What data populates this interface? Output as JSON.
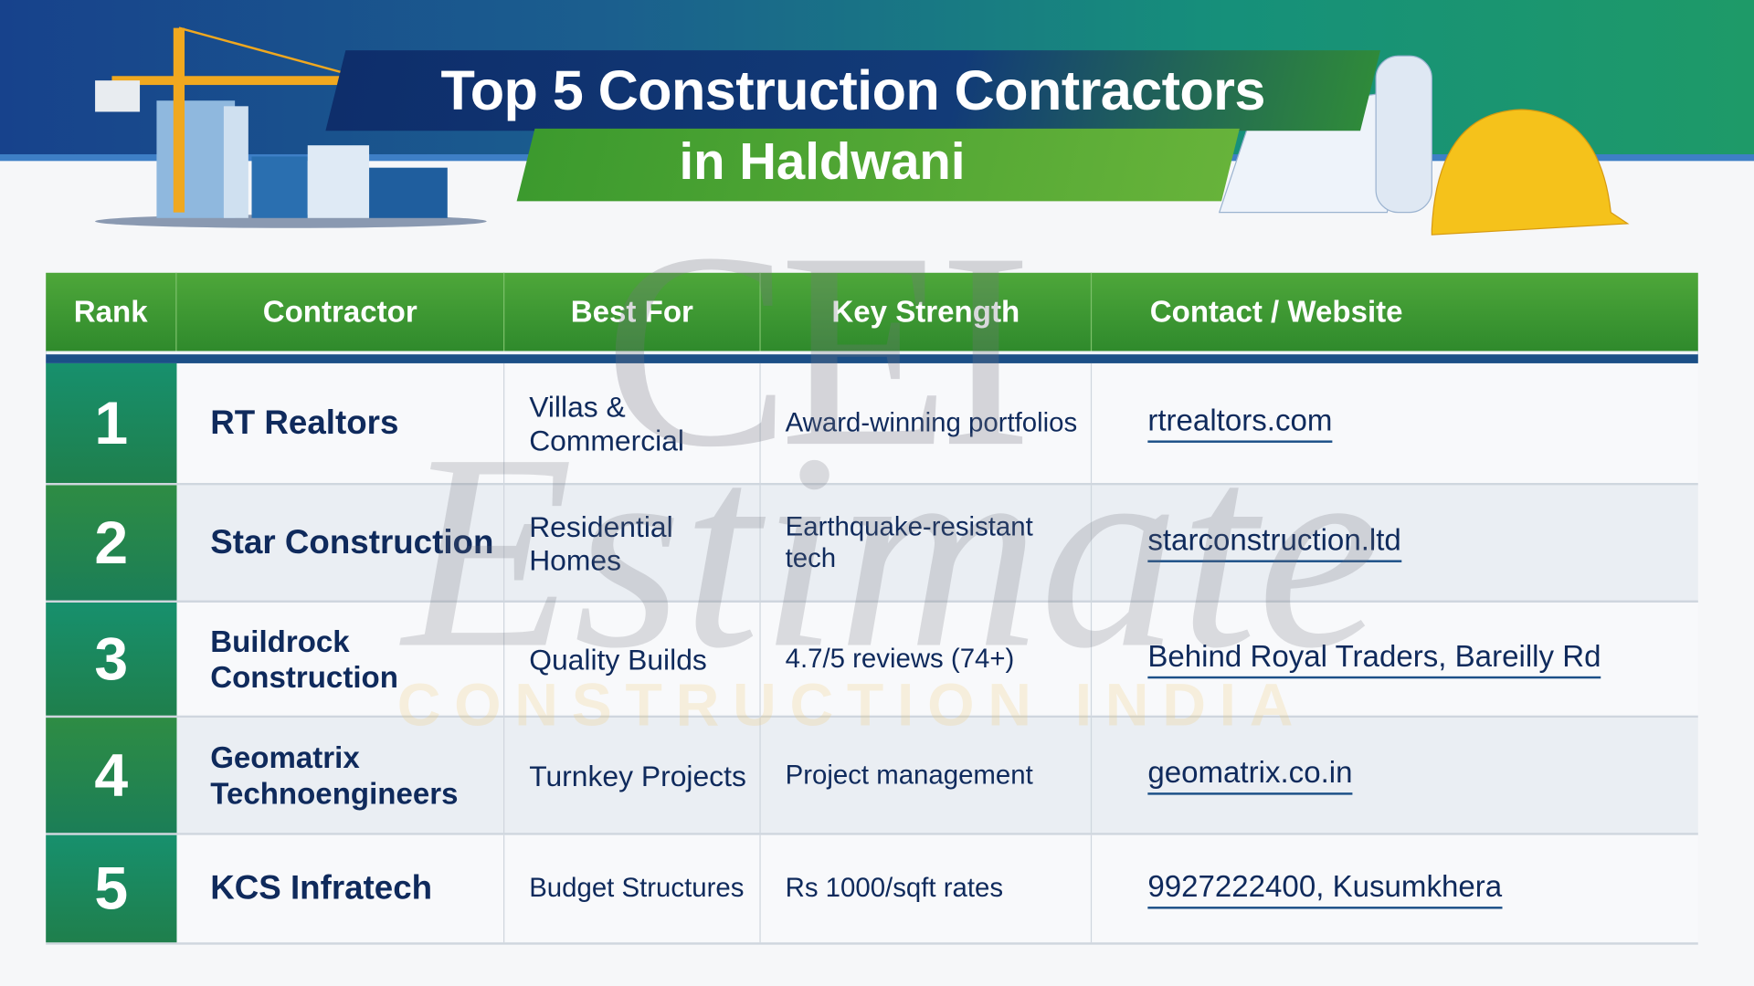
{
  "header": {
    "title": "Top 5 Construction Contractors",
    "subtitle": "in Haldwani"
  },
  "colors": {
    "header_green": "#3f9a32",
    "rank_green": "#1a8a5c",
    "navy_text": "#0f2a5c",
    "banner_blue": "#17428c"
  },
  "watermark": {
    "logo": "CEI",
    "script": "Estimate",
    "tagline": "CONSTRUCTION INDIA"
  },
  "table": {
    "columns": [
      "Rank",
      "Contractor",
      "Best For",
      "Key Strength",
      "Contact / Website"
    ],
    "rows": [
      {
        "rank": "1",
        "contractor": "RT Realtors",
        "best_for": "Villas & Commercial",
        "strength": "Award-winning portfolios",
        "contact": "rtrealtors.com"
      },
      {
        "rank": "2",
        "contractor": "Star Construction",
        "best_for": "Residential Homes",
        "strength": "Earthquake-resistant tech",
        "contact": "starconstruction.ltd"
      },
      {
        "rank": "3",
        "contractor": "Buildrock Construction",
        "best_for": "Quality Builds",
        "strength": "4.7/5 reviews (74+)",
        "contact": "Behind Royal Traders, Bareilly Rd"
      },
      {
        "rank": "4",
        "contractor": "Geomatrix Technoengineers",
        "best_for": "Turnkey Projects",
        "strength": "Project management",
        "contact": "geomatrix.co.in"
      },
      {
        "rank": "5",
        "contractor": "KCS Infratech",
        "best_for": "Budget Structures",
        "strength": "Rs 1000/sqft rates",
        "contact": "9927222400, Kusumkhera"
      }
    ]
  }
}
